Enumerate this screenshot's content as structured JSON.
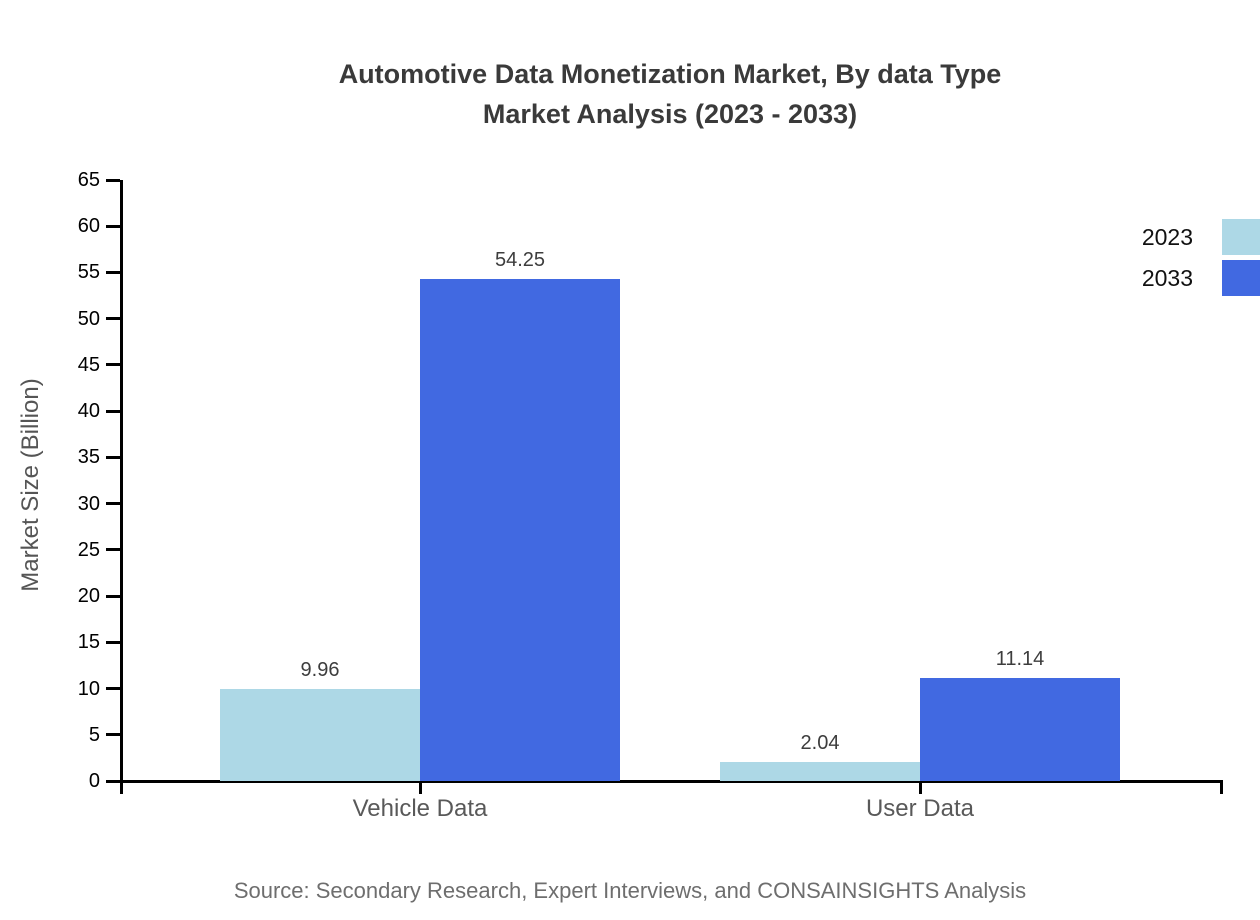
{
  "title": {
    "line1": "Automotive Data Monetization Market, By data Type",
    "line2": "Market Analysis (2023 - 2033)"
  },
  "source": "Source: Secondary Research, Expert Interviews, and CONSAINSIGHTS Analysis",
  "colors": {
    "series_2023": "#ADD8E6",
    "series_2033": "#4169E1",
    "axis": "#000000",
    "title_text": "#3a3a3a",
    "axis_label_text": "#555555",
    "category_text": "#595959",
    "source_text": "#6e6e6e"
  },
  "chart_data": {
    "type": "bar",
    "title": "Automotive Data Monetization Market, By data Type Market Analysis (2023 - 2033)",
    "categories": [
      "Vehicle Data",
      "User Data"
    ],
    "series": [
      {
        "name": "2023",
        "color": "#ADD8E6",
        "values": [
          9.96,
          2.04
        ]
      },
      {
        "name": "2033",
        "color": "#4169E1",
        "values": [
          54.25,
          11.14
        ]
      }
    ],
    "value_labels": [
      "9.96",
      "54.25",
      "2.04",
      "11.14"
    ],
    "xlabel": "",
    "ylabel": "Market Size (Billion)",
    "ylim": [
      0,
      65
    ],
    "yticks": [
      0,
      5,
      10,
      15,
      20,
      25,
      30,
      35,
      40,
      45,
      50,
      55,
      60,
      65
    ],
    "grid": false,
    "legend_position": "top-right",
    "legend_entries": [
      "2023",
      "2033"
    ]
  }
}
